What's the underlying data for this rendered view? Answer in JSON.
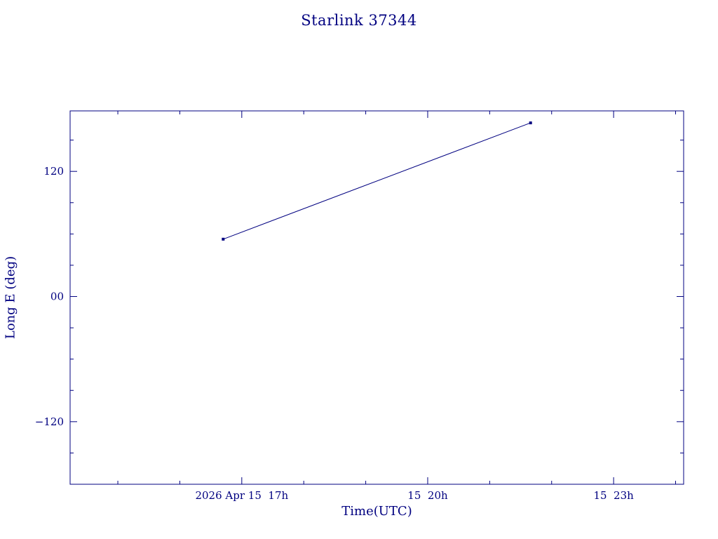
{
  "page": {
    "background": "#ffffff"
  },
  "chart_data": {
    "type": "line",
    "title": "Starlink 37344",
    "xlabel": "Time(UTC)",
    "ylabel": "Long E (deg)",
    "color": "#000080",
    "grid": false,
    "legend": false,
    "xlim_hours": [
      14.23,
      24.13
    ],
    "ylim_deg": [
      -180,
      178
    ],
    "x_major_ticks": [
      {
        "hour": 17,
        "label": "2026 Apr 15  17h"
      },
      {
        "hour": 20,
        "label": "15  20h"
      },
      {
        "hour": 23,
        "label": "15  23h"
      }
    ],
    "x_minor_tick_hours": [
      15,
      16,
      18,
      19,
      21,
      22,
      24
    ],
    "y_major_ticks": [
      {
        "value": 120,
        "label": "120"
      },
      {
        "value": 0,
        "label": "00"
      },
      {
        "value": -120,
        "label": "−120"
      }
    ],
    "y_minor_tick_values": [
      -150,
      -90,
      -60,
      -30,
      30,
      60,
      90,
      150
    ],
    "series": [
      {
        "name": "Starlink 37344 longitude track",
        "marker": "square",
        "points": [
          {
            "t_hours": 16.7,
            "long_e_deg": 55
          },
          {
            "t_hours": 21.66,
            "long_e_deg": 166.5
          }
        ]
      }
    ]
  }
}
